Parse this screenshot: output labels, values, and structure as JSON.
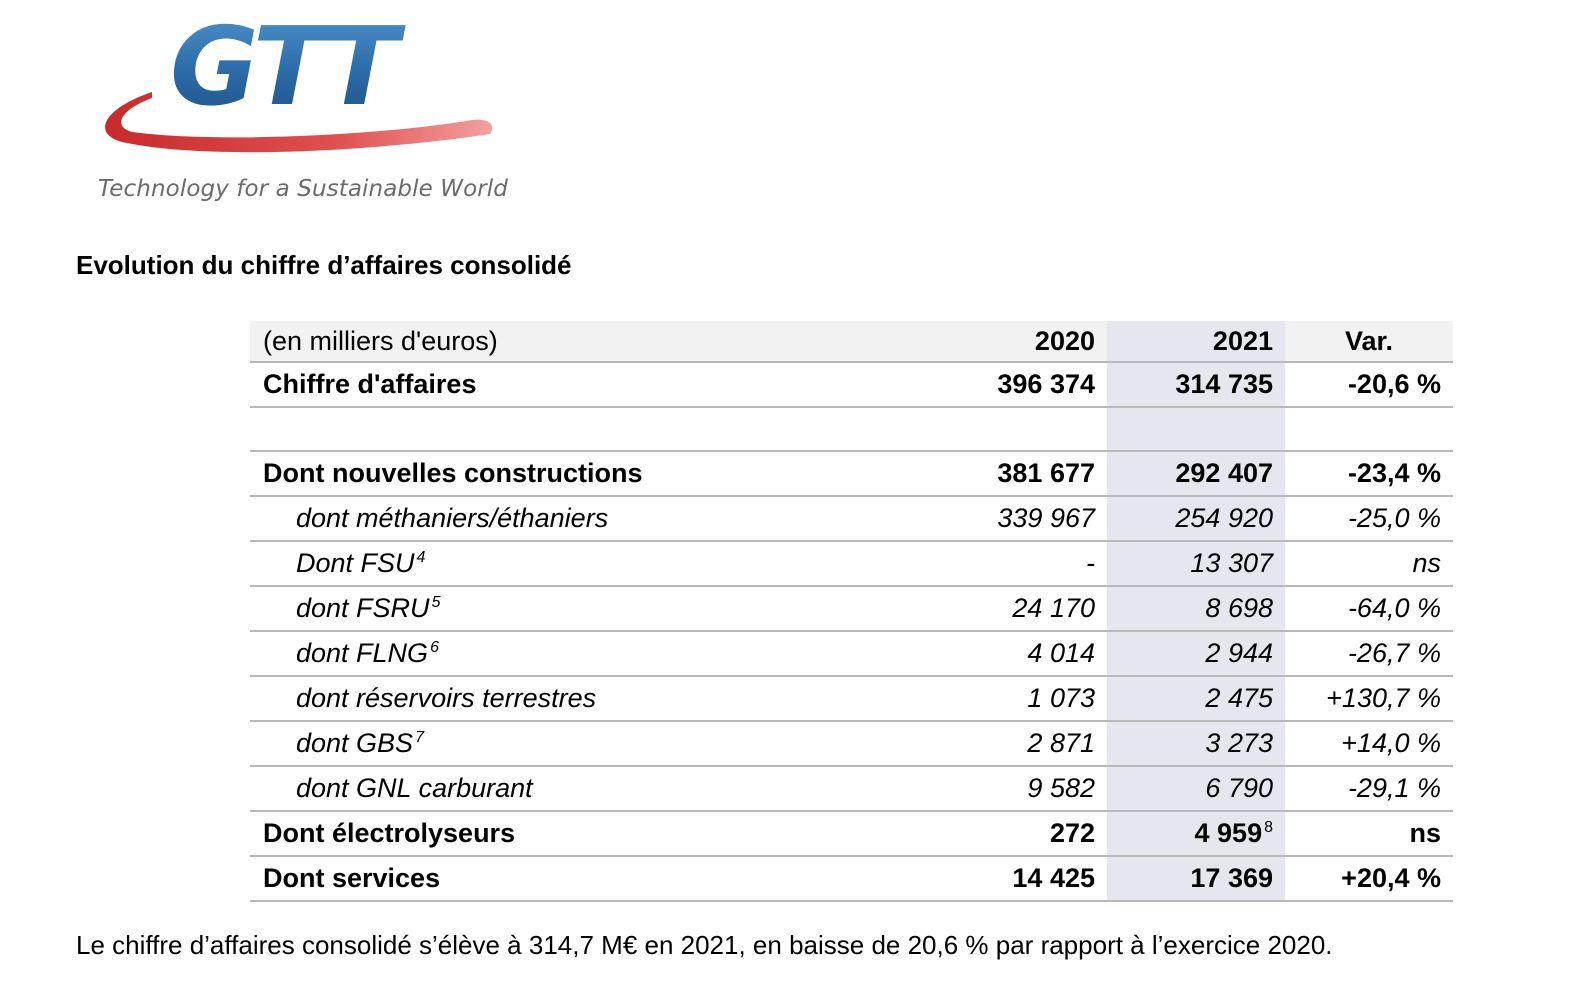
{
  "logo": {
    "wordmark": "GTT",
    "tagline": "Technology for a Sustainable World",
    "colors": {
      "blue": "#2f6fa8",
      "red": "#d03a3a"
    }
  },
  "title": "Evolution du chiffre d’affaires consolidé",
  "table": {
    "headers": {
      "label": "(en milliers d'euros)",
      "y2020": "2020",
      "y2021": "2021",
      "var": "Var."
    },
    "rows": [
      {
        "label": "Chiffre d'affaires",
        "sup": "",
        "y2020": "396 374",
        "y2021": "314 735",
        "y2021_sup": "",
        "var": "-20,6 %"
      },
      {
        "label": "Dont nouvelles constructions",
        "sup": "",
        "y2020": "381 677",
        "y2021": "292 407",
        "y2021_sup": "",
        "var": "-23,4 %"
      },
      {
        "label": "dont méthaniers/éthaniers",
        "sup": "",
        "y2020": "339 967",
        "y2021": "254 920",
        "y2021_sup": "",
        "var": "-25,0 %"
      },
      {
        "label": "Dont FSU",
        "sup": "4",
        "y2020": "-",
        "y2021": "13 307",
        "y2021_sup": "",
        "var": "ns"
      },
      {
        "label": "dont FSRU",
        "sup": "5",
        "y2020": "24 170",
        "y2021": "8 698",
        "y2021_sup": "",
        "var": "-64,0 %"
      },
      {
        "label": "dont FLNG",
        "sup": "6",
        "y2020": "4 014",
        "y2021": "2 944",
        "y2021_sup": "",
        "var": "-26,7 %"
      },
      {
        "label": "dont réservoirs terrestres",
        "sup": "",
        "y2020": "1 073",
        "y2021": "2 475",
        "y2021_sup": "",
        "var": "+130,7 %"
      },
      {
        "label": "dont GBS",
        "sup": "7",
        "y2020": "2 871",
        "y2021": "3 273",
        "y2021_sup": "",
        "var": "+14,0 %"
      },
      {
        "label": "dont GNL carburant",
        "sup": "",
        "y2020": "9 582",
        "y2021": "6 790",
        "y2021_sup": "",
        "var": "-29,1 %"
      },
      {
        "label": "Dont électrolyseurs",
        "sup": "",
        "y2020": "272",
        "y2021": "4 959",
        "y2021_sup": "8",
        "var": "ns"
      },
      {
        "label": "Dont services",
        "sup": "",
        "y2020": "14 425",
        "y2021": "17 369",
        "y2021_sup": "",
        "var": "+20,4 %"
      }
    ]
  },
  "summary": "Le chiffre d’affaires consolidé s’élève à 314,7 M€ en 2021, en baisse de 20,6 % par rapport à l’exercice 2020."
}
